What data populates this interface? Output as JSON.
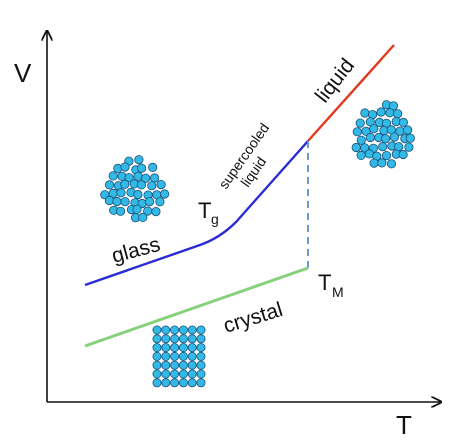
{
  "axes": {
    "y_label": "V",
    "x_label": "T"
  },
  "labels": {
    "glass": "glass",
    "tg_main": "T",
    "tg_sub": "g",
    "supercooled_line1": "supercooled",
    "supercooled_line2": "liquid",
    "liquid": "liquid",
    "crystal": "crystal",
    "tm_main": "T",
    "tm_sub": "M"
  },
  "colors": {
    "axis": "#111111",
    "glass_curve": "#2b2bd6",
    "liquid_curve": "#e23a1e",
    "crystal_curve": "#86d27a",
    "dashed_tm": "#5a8fd0",
    "particle_fill": "#33b9e6",
    "particle_stroke": "#1a4f7a"
  },
  "particle_clusters": [
    "glass-particles",
    "liquid-particles",
    "crystal-particles"
  ]
}
